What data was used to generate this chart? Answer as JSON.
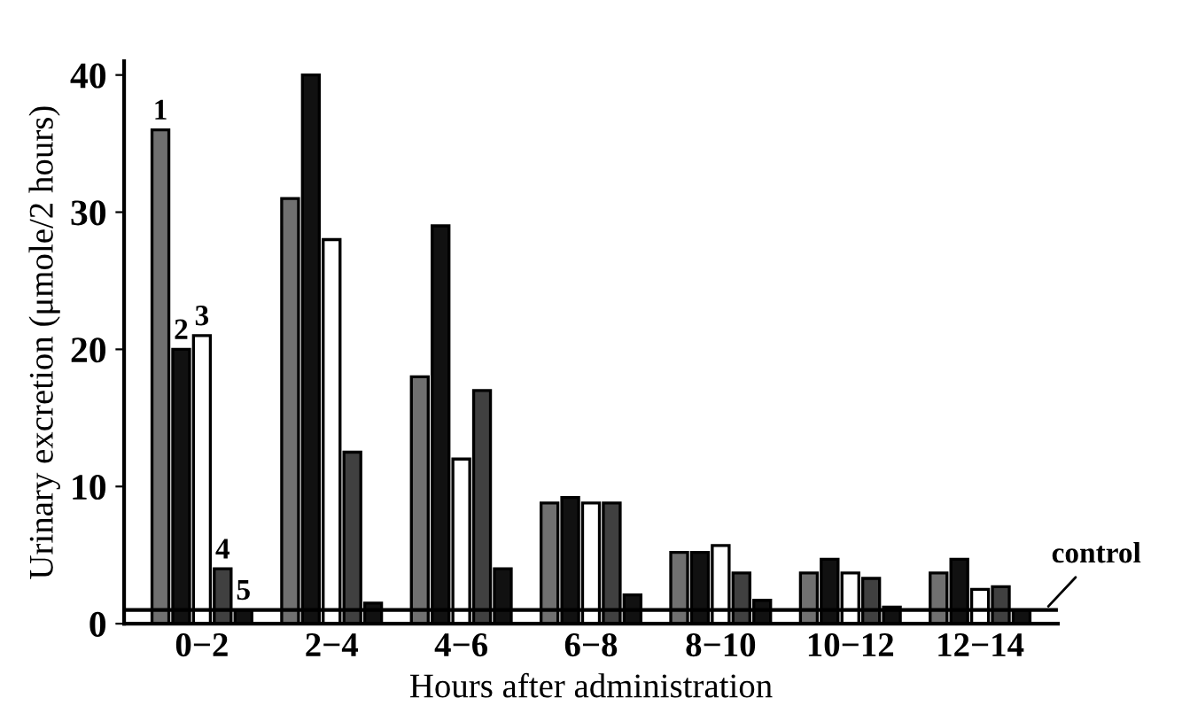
{
  "chart_data": {
    "type": "bar",
    "xlabel": "Hours after administration",
    "ylabel": "Urinary excretion (μmole/2 hours)",
    "categories": [
      "0−2",
      "2−4",
      "4−6",
      "6−8",
      "8−10",
      "10−12",
      "12−14"
    ],
    "series": [
      {
        "name": "1",
        "color": "#707070",
        "values": [
          36,
          31,
          18,
          8.8,
          5.2,
          3.7,
          3.7
        ]
      },
      {
        "name": "2",
        "color": "#111111",
        "values": [
          20,
          40,
          29,
          9.2,
          5.2,
          4.7,
          4.7
        ]
      },
      {
        "name": "3",
        "color": "#ffffff",
        "values": [
          21,
          28,
          12,
          8.8,
          5.7,
          3.7,
          2.5
        ]
      },
      {
        "name": "4",
        "color": "#404040",
        "values": [
          4,
          12.5,
          17,
          8.8,
          3.7,
          3.3,
          2.7
        ]
      },
      {
        "name": "5",
        "color": "#111111",
        "values": [
          1,
          1.5,
          4,
          2.1,
          1.7,
          1.2,
          1
        ]
      }
    ],
    "ylim": [
      0,
      41
    ],
    "yticks": [
      0,
      10,
      20,
      30,
      40
    ],
    "ref_lines": [
      {
        "axis": "y",
        "value": 1,
        "label": "control"
      }
    ],
    "grid": false,
    "legend": false
  }
}
